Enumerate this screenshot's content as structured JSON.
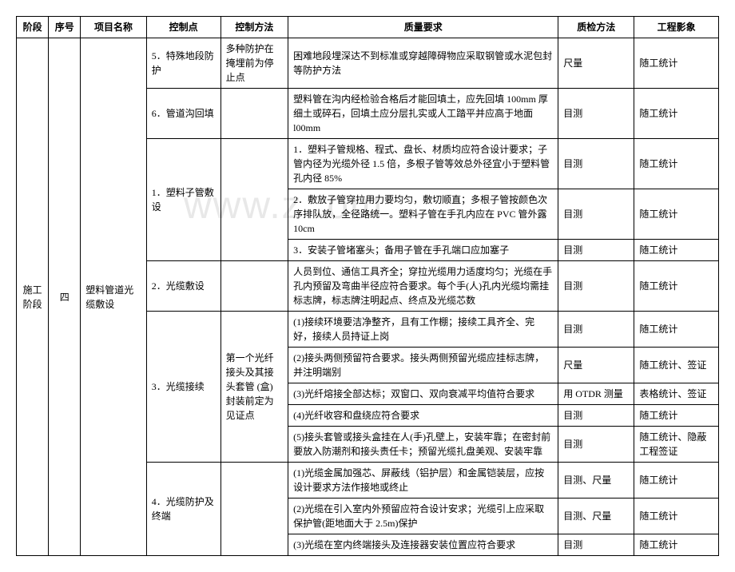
{
  "headers": {
    "stage": "阶段",
    "seq": "序号",
    "item": "项目名称",
    "ctrl_point": "控制点",
    "ctrl_method": "控制方法",
    "quality": "质量要求",
    "inspect": "质检方法",
    "project": "工程影象"
  },
  "watermark": "www.z    .om",
  "stage_label": "施工阶段",
  "seq_label": "四",
  "item_label": "塑料管道光缆敷设",
  "rows": [
    {
      "ctrl_point": "5．特殊地段防护",
      "ctrl_method": "多种防护在掩埋前为停止点",
      "quality": "困难地段埋深达不到标准或穿越障碍物应采取钢管或水泥包封等防护方法",
      "inspect": "尺量",
      "project": "随工统计"
    },
    {
      "ctrl_point": "6．管道沟回填",
      "ctrl_method": "",
      "quality": "塑料管在沟内经检验合格后才能回填土，应先回填 100mm 厚细土或碎石，回填土应分层扎实或人工踏平并应高于地面l00mm",
      "inspect": "目测",
      "project": "随工统计"
    },
    {
      "ctrl_point": "1．塑料子管敷设",
      "ctrl_method": "",
      "quality": "1．塑料子管规格、程式、盘长、材质均应符合设计要求；子管内径为光缆外径 1.5 倍，多根子管等效总外径宜小于塑料管孔内径 85%",
      "inspect": "目测",
      "project": "随工统计"
    },
    {
      "ctrl_point": "",
      "ctrl_method": "",
      "quality": "2．敷放子管穿拉用力要均匀，敷切顺直；多根子管按颜色次序排队放，全径路统一。塑料子管在手孔内应在 PVC 管外露10cm",
      "inspect": "目测",
      "project": "随工统计"
    },
    {
      "ctrl_point": "",
      "ctrl_method": "",
      "quality": "3．安装子管堵塞头；备用子管在手孔端口应加塞子",
      "inspect": "目测",
      "project": "随工统计"
    },
    {
      "ctrl_point": "2．光缆敷设",
      "ctrl_method": "",
      "quality": "人员到位、通信工具齐全；穿拉光缆用力适度均匀；光缆在手孔内预留及弯曲半径应符合要求。每个手(人)孔内光缆均需挂标志牌，标志牌注明起点、终点及光缆芯数",
      "inspect": "目测",
      "project": "随工统计"
    },
    {
      "ctrl_point": "3．光缆接续",
      "ctrl_method": "第一个光纤接头及其接头套管 (盒) 封装前定为见证点",
      "quality": "(1)接续环境要洁净整齐，且有工作棚；接续工具齐全、完好，接续人员持证上岗",
      "inspect": "目测",
      "project": "随工统计"
    },
    {
      "ctrl_point": "",
      "ctrl_method": "",
      "quality": "(2)接头两侧预留符合要求。接头两侧预留光缆应挂标志牌，并注明端别",
      "inspect": "尺量",
      "project": "随工统计、签证"
    },
    {
      "ctrl_point": "",
      "ctrl_method": "",
      "quality": "(3)光纤熔接全部达标；双窗口、双向衰减平均值符合要求",
      "inspect": "用 OTDR 测量",
      "project": "表格统计、签证"
    },
    {
      "ctrl_point": "",
      "ctrl_method": "",
      "quality": "(4)光纤收容和盘绕应符合要求",
      "inspect": "目测",
      "project": "随工统计"
    },
    {
      "ctrl_point": "",
      "ctrl_method": "",
      "quality": "(5)接头套管或接头盒挂在人(手)孔壁上，安装牢靠；在密封前要放入防潮剂和接头责任卡；预留光缆扎盘美观、安装牢靠",
      "inspect": "目测",
      "project": "随工统计、隐蔽工程签证"
    },
    {
      "ctrl_point": "4．光缆防护及终端",
      "ctrl_method": "",
      "quality": "(1)光缆金属加强芯、屏蔽线（铝护层）和金属铠装层，应按设计要求方法作接地或终止",
      "inspect": "目测、尺量",
      "project": "随工统计"
    },
    {
      "ctrl_point": "",
      "ctrl_method": "",
      "quality": "(2)光缆在引入室内外预留应符合设计安求；光缆引上应采取保护管(距地面大于 2.5m)保护",
      "inspect": "目测、尺量",
      "project": "随工统计"
    },
    {
      "ctrl_point": "",
      "ctrl_method": "",
      "quality": "(3)光缆在室内终端接头及连接器安装位置应符合要求",
      "inspect": "目测",
      "project": "随工统计"
    }
  ]
}
